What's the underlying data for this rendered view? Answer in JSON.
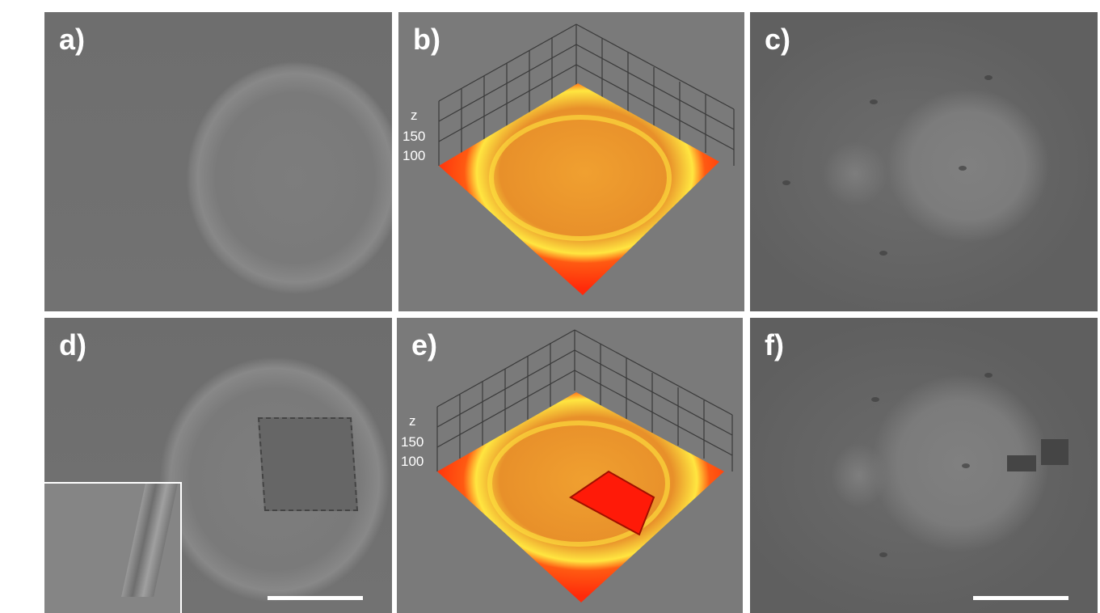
{
  "panels": [
    {
      "id": "a",
      "label": "a)"
    },
    {
      "id": "b",
      "label": "b)",
      "axis": {
        "z": "z",
        "tick_150": "150",
        "tick_100": "100"
      }
    },
    {
      "id": "c",
      "label": "c)"
    },
    {
      "id": "d",
      "label": "d)"
    },
    {
      "id": "e",
      "label": "e)",
      "axis": {
        "z": "z",
        "tick_150": "150",
        "tick_100": "100"
      }
    },
    {
      "id": "f",
      "label": "f)"
    }
  ],
  "colors": {
    "surface_red": "#ff2a0a",
    "surface_orange": "#f07a20",
    "surface_yellow": "#ffe640",
    "grid": "#3a3a3a",
    "sem_gray": "#707070"
  }
}
